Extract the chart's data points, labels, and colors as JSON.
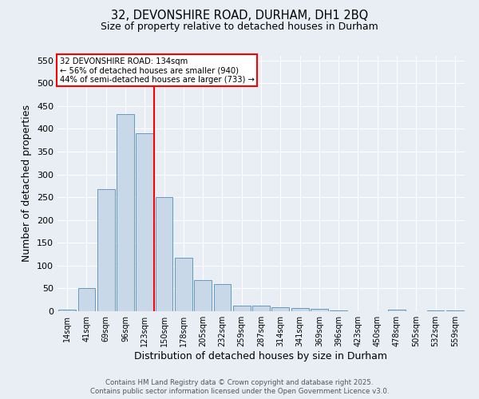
{
  "title": "32, DEVONSHIRE ROAD, DURHAM, DH1 2BQ",
  "subtitle": "Size of property relative to detached houses in Durham",
  "xlabel": "Distribution of detached houses by size in Durham",
  "ylabel": "Number of detached properties",
  "bar_color": "#c8d8e8",
  "bar_edge_color": "#6699bb",
  "categories": [
    "14sqm",
    "41sqm",
    "69sqm",
    "96sqm",
    "123sqm",
    "150sqm",
    "178sqm",
    "205sqm",
    "232sqm",
    "259sqm",
    "287sqm",
    "314sqm",
    "341sqm",
    "369sqm",
    "396sqm",
    "423sqm",
    "450sqm",
    "478sqm",
    "505sqm",
    "532sqm",
    "559sqm"
  ],
  "values": [
    3,
    50,
    267,
    433,
    390,
    250,
    117,
    68,
    60,
    13,
    13,
    8,
    7,
    5,
    2,
    0,
    0,
    3,
    0,
    2,
    2
  ],
  "red_line_x": 4.5,
  "annotation_line1": "32 DEVONSHIRE ROAD: 134sqm",
  "annotation_line2": "← 56% of detached houses are smaller (940)",
  "annotation_line3": "44% of semi-detached houses are larger (733) →",
  "ylim": [
    0,
    560
  ],
  "yticks": [
    0,
    50,
    100,
    150,
    200,
    250,
    300,
    350,
    400,
    450,
    500,
    550
  ],
  "footer1": "Contains HM Land Registry data © Crown copyright and database right 2025.",
  "footer2": "Contains public sector information licensed under the Open Government Licence v3.0.",
  "background_color": "#e8eef4",
  "grid_color": "#ffffff"
}
